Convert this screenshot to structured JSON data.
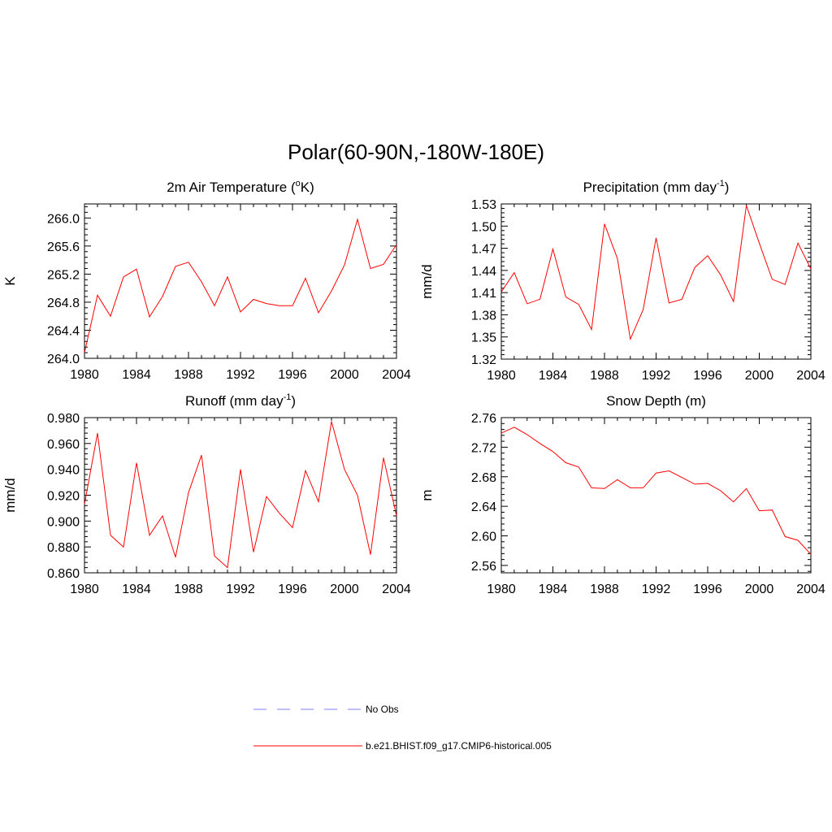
{
  "figure": {
    "title": "Polar(60-90N,-180W-180E)"
  },
  "colors": {
    "model": "#ff0000",
    "obs": "#9999ff",
    "axis": "#000000"
  },
  "legend": {
    "entries": [
      {
        "label": "No Obs",
        "style": "dashed",
        "color": "#9999ff"
      },
      {
        "label": "b.e21.BHIST.f09_g17.CMIP6-historical.005",
        "style": "solid",
        "color": "#ff0000"
      }
    ]
  },
  "chart_data": [
    {
      "id": "temperature",
      "type": "line",
      "title_main": "2m Air Temperature (",
      "title_sup": "o",
      "title_tail": "K)",
      "ylabel": "K",
      "xlabel": "",
      "xlim": [
        1980,
        2004
      ],
      "ylim": [
        264.0,
        266.2
      ],
      "xticks": [
        1980,
        1984,
        1988,
        1992,
        1996,
        2000,
        2004
      ],
      "yticks": [
        264.0,
        264.4,
        264.8,
        265.2,
        265.6,
        266.0
      ],
      "ytick_labels": [
        "264.0",
        "264.4",
        "264.8",
        "265.2",
        "265.6",
        "266.0"
      ],
      "series": [
        {
          "name": "b.e21.BHIST.f09_g17.CMIP6-historical.005",
          "x": [
            1980,
            1981,
            1982,
            1983,
            1984,
            1985,
            1986,
            1987,
            1988,
            1989,
            1990,
            1991,
            1992,
            1993,
            1994,
            1995,
            1996,
            1997,
            1998,
            1999,
            2000,
            2001,
            2002,
            2003,
            2004
          ],
          "values": [
            264.08,
            264.9,
            264.6,
            265.16,
            265.27,
            264.59,
            264.88,
            265.31,
            265.37,
            265.09,
            264.75,
            265.16,
            264.66,
            264.84,
            264.78,
            264.75,
            264.75,
            265.14,
            264.65,
            264.96,
            265.33,
            265.98,
            265.28,
            265.34,
            265.62
          ]
        }
      ]
    },
    {
      "id": "precipitation",
      "type": "line",
      "title_main": "Precipitation (mm day",
      "title_sup": "-1",
      "title_tail": ")",
      "ylabel": "mm/d",
      "xlabel": "",
      "xlim": [
        1980,
        2004
      ],
      "ylim": [
        1.32,
        1.53
      ],
      "xticks": [
        1980,
        1984,
        1988,
        1992,
        1996,
        2000,
        2004
      ],
      "yticks": [
        1.32,
        1.35,
        1.38,
        1.41,
        1.44,
        1.47,
        1.5,
        1.53
      ],
      "ytick_labels": [
        "1.32",
        "1.35",
        "1.38",
        "1.41",
        "1.44",
        "1.47",
        "1.50",
        "1.53"
      ],
      "series": [
        {
          "name": "b.e21.BHIST.f09_g17.CMIP6-historical.005",
          "x": [
            1980,
            1981,
            1982,
            1983,
            1984,
            1985,
            1986,
            1987,
            1988,
            1989,
            1990,
            1991,
            1992,
            1993,
            1994,
            1995,
            1996,
            1997,
            1998,
            1999,
            2000,
            2001,
            2002,
            2003,
            2004
          ],
          "values": [
            1.411,
            1.437,
            1.395,
            1.401,
            1.469,
            1.404,
            1.394,
            1.36,
            1.503,
            1.456,
            1.347,
            1.387,
            1.484,
            1.396,
            1.401,
            1.444,
            1.46,
            1.434,
            1.398,
            1.528,
            1.477,
            1.428,
            1.421,
            1.477,
            1.442
          ]
        }
      ]
    },
    {
      "id": "runoff",
      "type": "line",
      "title_main": "Runoff (mm day",
      "title_sup": "-1",
      "title_tail": ")",
      "ylabel": "mm/d",
      "xlabel": "",
      "xlim": [
        1980,
        2004
      ],
      "ylim": [
        0.86,
        0.98
      ],
      "xticks": [
        1980,
        1984,
        1988,
        1992,
        1996,
        2000,
        2004
      ],
      "yticks": [
        0.86,
        0.88,
        0.9,
        0.92,
        0.94,
        0.96,
        0.98
      ],
      "ytick_labels": [
        "0.860",
        "0.880",
        "0.900",
        "0.920",
        "0.940",
        "0.960",
        "0.980"
      ],
      "series": [
        {
          "name": "b.e21.BHIST.f09_g17.CMIP6-historical.005",
          "x": [
            1980,
            1981,
            1982,
            1983,
            1984,
            1985,
            1986,
            1987,
            1988,
            1989,
            1990,
            1991,
            1992,
            1993,
            1994,
            1995,
            1996,
            1997,
            1998,
            1999,
            2000,
            2001,
            2002,
            2003,
            2004
          ],
          "values": [
            0.913,
            0.968,
            0.889,
            0.88,
            0.945,
            0.889,
            0.904,
            0.872,
            0.922,
            0.951,
            0.873,
            0.864,
            0.94,
            0.876,
            0.919,
            0.906,
            0.895,
            0.939,
            0.915,
            0.977,
            0.94,
            0.92,
            0.874,
            0.949,
            0.904
          ]
        }
      ]
    },
    {
      "id": "snow-depth",
      "type": "line",
      "title_main": "Snow Depth (m)",
      "title_sup": "",
      "title_tail": "",
      "ylabel": "m",
      "xlabel": "",
      "xlim": [
        1980,
        2004
      ],
      "ylim": [
        2.55,
        2.76
      ],
      "xticks": [
        1980,
        1984,
        1988,
        1992,
        1996,
        2000,
        2004
      ],
      "yticks": [
        2.56,
        2.6,
        2.64,
        2.68,
        2.72,
        2.76
      ],
      "ytick_labels": [
        "2.56",
        "2.60",
        "2.64",
        "2.68",
        "2.72",
        "2.76"
      ],
      "series": [
        {
          "name": "b.e21.BHIST.f09_g17.CMIP6-historical.005",
          "x": [
            1980,
            1981,
            1982,
            1983,
            1984,
            1985,
            1986,
            1987,
            1988,
            1989,
            1990,
            1991,
            1992,
            1993,
            1994,
            1995,
            1996,
            1997,
            1998,
            1999,
            2000,
            2001,
            2002,
            2003,
            2004
          ],
          "values": [
            2.739,
            2.747,
            2.737,
            2.725,
            2.714,
            2.699,
            2.693,
            2.665,
            2.664,
            2.676,
            2.665,
            2.665,
            2.685,
            2.688,
            2.679,
            2.67,
            2.671,
            2.661,
            2.646,
            2.664,
            2.634,
            2.635,
            2.599,
            2.594,
            2.575
          ]
        }
      ]
    }
  ]
}
